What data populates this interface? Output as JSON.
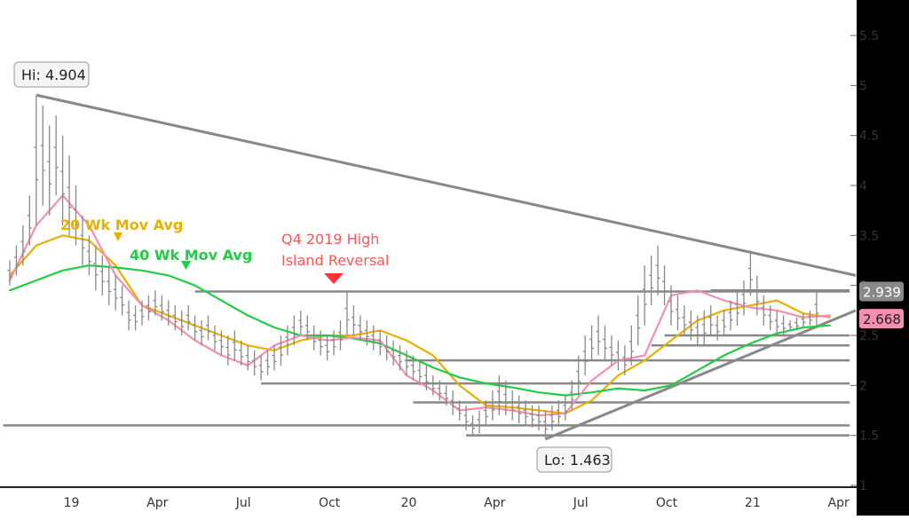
{
  "chart_data": {
    "type": "ohlc",
    "title": "",
    "xlabel": "",
    "ylabel": "",
    "x_ticks": [
      "19",
      "Apr",
      "Jul",
      "Oct",
      "20",
      "Apr",
      "Jul",
      "Oct",
      "21",
      "Apr"
    ],
    "y_ticks": [
      "1",
      "1.5",
      "2",
      "2.5",
      "3",
      "3.5",
      "4",
      "4.5",
      "5",
      "5.5"
    ],
    "y_tick_values": [
      1,
      1.5,
      2,
      2.5,
      3,
      3.5,
      4,
      4.5,
      5,
      5.5
    ],
    "ylim": [
      1.0,
      5.8
    ],
    "grid": false,
    "price_bars": [
      {
        "h": 3.25,
        "l": 3.0
      },
      {
        "h": 3.4,
        "l": 3.1
      },
      {
        "h": 3.6,
        "l": 3.2
      },
      {
        "h": 3.9,
        "l": 3.4
      },
      {
        "h": 4.904,
        "l": 3.6
      },
      {
        "h": 4.8,
        "l": 3.8
      },
      {
        "h": 4.6,
        "l": 3.7
      },
      {
        "h": 4.7,
        "l": 3.9
      },
      {
        "h": 4.5,
        "l": 3.6
      },
      {
        "h": 4.3,
        "l": 3.5
      },
      {
        "h": 4.0,
        "l": 3.4
      },
      {
        "h": 3.7,
        "l": 3.2
      },
      {
        "h": 3.5,
        "l": 3.1
      },
      {
        "h": 3.4,
        "l": 2.95
      },
      {
        "h": 3.3,
        "l": 2.9
      },
      {
        "h": 3.2,
        "l": 2.8
      },
      {
        "h": 3.1,
        "l": 2.75
      },
      {
        "h": 3.0,
        "l": 2.7
      },
      {
        "h": 2.85,
        "l": 2.55
      },
      {
        "h": 2.8,
        "l": 2.55
      },
      {
        "h": 2.85,
        "l": 2.6
      },
      {
        "h": 2.9,
        "l": 2.65
      },
      {
        "h": 2.95,
        "l": 2.7
      },
      {
        "h": 2.9,
        "l": 2.65
      },
      {
        "h": 2.85,
        "l": 2.6
      },
      {
        "h": 2.8,
        "l": 2.55
      },
      {
        "h": 2.75,
        "l": 2.5
      },
      {
        "h": 2.8,
        "l": 2.55
      },
      {
        "h": 2.7,
        "l": 2.45
      },
      {
        "h": 2.65,
        "l": 2.4
      },
      {
        "h": 2.7,
        "l": 2.45
      },
      {
        "h": 2.6,
        "l": 2.35
      },
      {
        "h": 2.55,
        "l": 2.3
      },
      {
        "h": 2.5,
        "l": 2.2
      },
      {
        "h": 2.55,
        "l": 2.25
      },
      {
        "h": 2.45,
        "l": 2.2
      },
      {
        "h": 2.4,
        "l": 2.15
      },
      {
        "h": 2.35,
        "l": 2.1
      },
      {
        "h": 2.3,
        "l": 2.05
      },
      {
        "h": 2.35,
        "l": 2.1
      },
      {
        "h": 2.4,
        "l": 2.15
      },
      {
        "h": 2.5,
        "l": 2.2
      },
      {
        "h": 2.6,
        "l": 2.3
      },
      {
        "h": 2.7,
        "l": 2.4
      },
      {
        "h": 2.75,
        "l": 2.5
      },
      {
        "h": 2.7,
        "l": 2.45
      },
      {
        "h": 2.6,
        "l": 2.35
      },
      {
        "h": 2.55,
        "l": 2.3
      },
      {
        "h": 2.5,
        "l": 2.25
      },
      {
        "h": 2.55,
        "l": 2.3
      },
      {
        "h": 2.65,
        "l": 2.35
      },
      {
        "h": 2.95,
        "l": 2.5
      },
      {
        "h": 2.8,
        "l": 2.5
      },
      {
        "h": 2.7,
        "l": 2.45
      },
      {
        "h": 2.65,
        "l": 2.4
      },
      {
        "h": 2.6,
        "l": 2.35
      },
      {
        "h": 2.55,
        "l": 2.3
      },
      {
        "h": 2.5,
        "l": 2.25
      },
      {
        "h": 2.45,
        "l": 2.2
      },
      {
        "h": 2.4,
        "l": 2.15
      },
      {
        "h": 2.35,
        "l": 2.1
      },
      {
        "h": 2.3,
        "l": 2.05
      },
      {
        "h": 2.25,
        "l": 2.0
      },
      {
        "h": 2.2,
        "l": 1.95
      },
      {
        "h": 2.1,
        "l": 1.9
      },
      {
        "h": 2.05,
        "l": 1.85
      },
      {
        "h": 2.0,
        "l": 1.8
      },
      {
        "h": 1.95,
        "l": 1.7
      },
      {
        "h": 1.85,
        "l": 1.65
      },
      {
        "h": 1.8,
        "l": 1.55
      },
      {
        "h": 1.7,
        "l": 1.5
      },
      {
        "h": 1.75,
        "l": 1.52
      },
      {
        "h": 1.85,
        "l": 1.6
      },
      {
        "h": 1.95,
        "l": 1.65
      },
      {
        "h": 2.1,
        "l": 1.7
      },
      {
        "h": 2.05,
        "l": 1.7
      },
      {
        "h": 1.95,
        "l": 1.65
      },
      {
        "h": 1.9,
        "l": 1.62
      },
      {
        "h": 1.85,
        "l": 1.6
      },
      {
        "h": 1.8,
        "l": 1.58
      },
      {
        "h": 1.8,
        "l": 1.55
      },
      {
        "h": 1.75,
        "l": 1.463
      },
      {
        "h": 1.8,
        "l": 1.55
      },
      {
        "h": 1.85,
        "l": 1.6
      },
      {
        "h": 1.9,
        "l": 1.65
      },
      {
        "h": 2.05,
        "l": 1.75
      },
      {
        "h": 2.3,
        "l": 1.9
      },
      {
        "h": 2.5,
        "l": 2.1
      },
      {
        "h": 2.6,
        "l": 2.25
      },
      {
        "h": 2.7,
        "l": 2.3
      },
      {
        "h": 2.6,
        "l": 2.25
      },
      {
        "h": 2.5,
        "l": 2.2
      },
      {
        "h": 2.45,
        "l": 2.15
      },
      {
        "h": 2.4,
        "l": 2.1
      },
      {
        "h": 2.6,
        "l": 2.2
      },
      {
        "h": 2.9,
        "l": 2.4
      },
      {
        "h": 3.2,
        "l": 2.6
      },
      {
        "h": 3.3,
        "l": 2.8
      },
      {
        "h": 3.4,
        "l": 2.9
      },
      {
        "h": 3.2,
        "l": 2.8
      },
      {
        "h": 3.0,
        "l": 2.6
      },
      {
        "h": 2.9,
        "l": 2.55
      },
      {
        "h": 2.8,
        "l": 2.5
      },
      {
        "h": 2.75,
        "l": 2.45
      },
      {
        "h": 2.7,
        "l": 2.4
      },
      {
        "h": 2.75,
        "l": 2.4
      },
      {
        "h": 2.8,
        "l": 2.5
      },
      {
        "h": 2.7,
        "l": 2.45
      },
      {
        "h": 2.75,
        "l": 2.5
      },
      {
        "h": 2.85,
        "l": 2.55
      },
      {
        "h": 2.95,
        "l": 2.6
      },
      {
        "h": 3.05,
        "l": 2.7
      },
      {
        "h": 3.35,
        "l": 2.9
      },
      {
        "h": 3.1,
        "l": 2.7
      },
      {
        "h": 2.9,
        "l": 2.6
      },
      {
        "h": 2.8,
        "l": 2.55
      },
      {
        "h": 2.75,
        "l": 2.5
      },
      {
        "h": 2.7,
        "l": 2.5
      },
      {
        "h": 2.65,
        "l": 2.55
      },
      {
        "h": 2.68,
        "l": 2.55
      },
      {
        "h": 2.72,
        "l": 2.58
      },
      {
        "h": 2.75,
        "l": 2.6
      },
      {
        "h": 2.95,
        "l": 2.6
      }
    ],
    "series": [
      {
        "name": "20 Wk Mov Avg",
        "color": "#e8b000",
        "points": [
          [
            0,
            3.1
          ],
          [
            4,
            3.4
          ],
          [
            8,
            3.5
          ],
          [
            12,
            3.45
          ],
          [
            16,
            3.2
          ],
          [
            20,
            2.8
          ],
          [
            24,
            2.7
          ],
          [
            28,
            2.6
          ],
          [
            32,
            2.5
          ],
          [
            36,
            2.4
          ],
          [
            40,
            2.35
          ],
          [
            44,
            2.45
          ],
          [
            48,
            2.5
          ],
          [
            52,
            2.5
          ],
          [
            56,
            2.55
          ],
          [
            60,
            2.45
          ],
          [
            64,
            2.3
          ],
          [
            68,
            2.0
          ],
          [
            72,
            1.8
          ],
          [
            76,
            1.78
          ],
          [
            80,
            1.75
          ],
          [
            84,
            1.72
          ],
          [
            88,
            1.85
          ],
          [
            92,
            2.1
          ],
          [
            96,
            2.25
          ],
          [
            100,
            2.45
          ],
          [
            104,
            2.65
          ],
          [
            108,
            2.75
          ],
          [
            112,
            2.8
          ],
          [
            116,
            2.85
          ],
          [
            120,
            2.72
          ],
          [
            124,
            2.68
          ]
        ]
      },
      {
        "name": "40 Wk Mov Avg",
        "color": "#22cc44",
        "points": [
          [
            0,
            2.95
          ],
          [
            4,
            3.05
          ],
          [
            8,
            3.15
          ],
          [
            12,
            3.2
          ],
          [
            16,
            3.18
          ],
          [
            20,
            3.15
          ],
          [
            24,
            3.1
          ],
          [
            28,
            3.0
          ],
          [
            32,
            2.85
          ],
          [
            36,
            2.7
          ],
          [
            40,
            2.58
          ],
          [
            44,
            2.5
          ],
          [
            48,
            2.5
          ],
          [
            52,
            2.47
          ],
          [
            56,
            2.42
          ],
          [
            60,
            2.3
          ],
          [
            64,
            2.18
          ],
          [
            68,
            2.08
          ],
          [
            72,
            2.02
          ],
          [
            76,
            1.98
          ],
          [
            80,
            1.93
          ],
          [
            84,
            1.9
          ],
          [
            88,
            1.93
          ],
          [
            92,
            1.97
          ],
          [
            96,
            1.95
          ],
          [
            100,
            2.0
          ],
          [
            104,
            2.15
          ],
          [
            108,
            2.3
          ],
          [
            112,
            2.42
          ],
          [
            116,
            2.52
          ],
          [
            120,
            2.58
          ],
          [
            124,
            2.6
          ]
        ]
      },
      {
        "name": "",
        "color": "#f48fb1",
        "points": [
          [
            0,
            3.05
          ],
          [
            4,
            3.6
          ],
          [
            8,
            3.9
          ],
          [
            12,
            3.6
          ],
          [
            16,
            3.1
          ],
          [
            20,
            2.8
          ],
          [
            24,
            2.65
          ],
          [
            28,
            2.45
          ],
          [
            32,
            2.3
          ],
          [
            36,
            2.2
          ],
          [
            40,
            2.4
          ],
          [
            44,
            2.5
          ],
          [
            48,
            2.45
          ],
          [
            52,
            2.48
          ],
          [
            56,
            2.45
          ],
          [
            60,
            2.1
          ],
          [
            64,
            1.95
          ],
          [
            68,
            1.75
          ],
          [
            72,
            1.78
          ],
          [
            76,
            1.75
          ],
          [
            80,
            1.7
          ],
          [
            84,
            1.72
          ],
          [
            88,
            2.05
          ],
          [
            92,
            2.25
          ],
          [
            96,
            2.3
          ],
          [
            100,
            2.9
          ],
          [
            104,
            2.95
          ],
          [
            108,
            2.85
          ],
          [
            112,
            2.78
          ],
          [
            116,
            2.75
          ],
          [
            120,
            2.68
          ],
          [
            124,
            2.7
          ]
        ]
      }
    ],
    "price_labels": [
      {
        "value": 2.939,
        "text": "2.939",
        "bg": "#888888",
        "fg": "#ffffff"
      },
      {
        "value": 2.668,
        "text": "2.668",
        "bg": "#f48fb1",
        "fg": "#222222"
      }
    ],
    "horizontal_lines": [
      {
        "y": 2.939,
        "x1": 28,
        "x2": 127
      },
      {
        "y": 2.95,
        "x1": 106,
        "x2": 127
      },
      {
        "y": 2.5,
        "x1": 99,
        "x2": 127
      },
      {
        "y": 2.4,
        "x1": 97,
        "x2": 127
      },
      {
        "y": 2.25,
        "x1": 60,
        "x2": 127
      },
      {
        "y": 2.02,
        "x1": 38,
        "x2": 127
      },
      {
        "y": 1.83,
        "x1": 61,
        "x2": 127
      },
      {
        "y": 1.6,
        "x1": -1,
        "x2": 127
      },
      {
        "y": 1.5,
        "x1": 69,
        "x2": 127
      }
    ],
    "trend_lines": [
      {
        "x1": 4,
        "y1": 4.904,
        "x2": 128,
        "y2": 3.1
      },
      {
        "x1": 81,
        "y1": 1.463,
        "x2": 128,
        "y2": 2.75
      }
    ],
    "annotations": {
      "hi_label": "Hi: 4.904",
      "lo_label": "Lo: 1.463",
      "ma20_label": "20 Wk Mov Avg",
      "ma40_label": "40 Wk Mov Avg",
      "reversal_line1": "Q4 2019 High",
      "reversal_line2": "Island Reversal"
    },
    "colors": {
      "ma20": "#e8b000",
      "ma40": "#22cc44",
      "ma_fast": "#f48fb1",
      "bars": "#888888",
      "lines": "#888888",
      "reversal_text": "#ff5555",
      "reversal_marker": "#ff3333",
      "axis_bg": "#000000"
    }
  }
}
